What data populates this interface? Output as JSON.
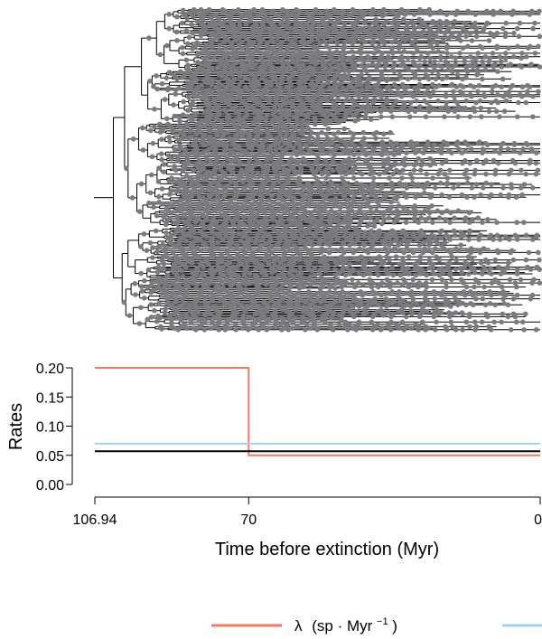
{
  "chart_data": [
    {
      "type": "tree",
      "node_color": "#7b7b7f",
      "branch_color": "#000000"
    },
    {
      "type": "line",
      "ylabel": "Rates",
      "xlabel": "Time before extinction (Myr)",
      "xlim": [
        106.94,
        0
      ],
      "ylim": [
        0,
        0.2
      ],
      "x_ticks": [
        "106.94",
        "70",
        "0"
      ],
      "y_ticks": [
        "0.00",
        "0.05",
        "0.10",
        "0.15",
        "0.20"
      ],
      "series": [
        {
          "name": "λ (sp · Myr⁻¹)",
          "color": "#f07a63",
          "x": [
            106.94,
            70,
            70,
            0
          ],
          "y": [
            0.2,
            0.2,
            0.05,
            0.05
          ]
        },
        {
          "name": "",
          "color": "#9fd4e6",
          "x": [
            106.94,
            0
          ],
          "y": [
            0.07,
            0.07
          ]
        },
        {
          "name": "",
          "color": "#000000",
          "x": [
            106.94,
            0
          ],
          "y": [
            0.057,
            0.057
          ]
        }
      ],
      "legend": {
        "position": "bottom",
        "lambda_symbol": "λ",
        "lambda_unit_prefix": "(sp · Myr",
        "lambda_unit_exp": "−1",
        "lambda_unit_suffix": ")"
      }
    }
  ]
}
